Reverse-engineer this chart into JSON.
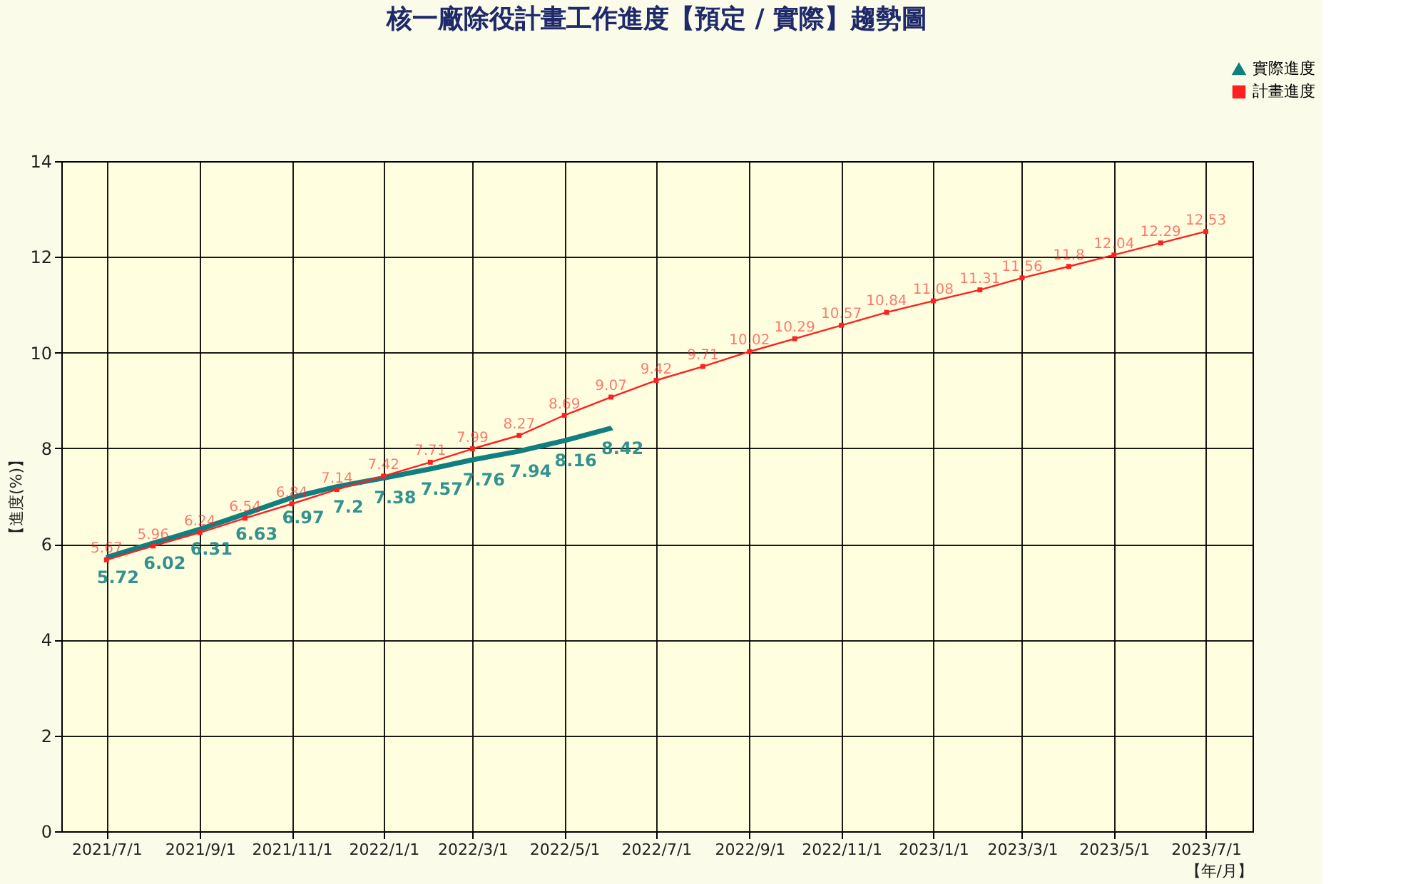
{
  "chart_data": {
    "type": "line",
    "title": "核一廠除役計畫工作進度【預定 / 實際】趨勢圖",
    "xlabel": "【年/月】",
    "ylabel": "【進度(%)】",
    "x": [
      "2021-07-01",
      "2021-08-01",
      "2021-09-01",
      "2021-10-01",
      "2021-11-01",
      "2021-12-01",
      "2022-01-01",
      "2022-02-01",
      "2022-03-01",
      "2022-04-01",
      "2022-05-01",
      "2022-06-01",
      "2022-07-01",
      "2022-08-01",
      "2022-09-01",
      "2022-10-01",
      "2022-11-01",
      "2022-12-01",
      "2023-01-01",
      "2023-02-01",
      "2023-03-01",
      "2023-04-01",
      "2023-05-01",
      "2023-06-01",
      "2023-07-01"
    ],
    "series": [
      {
        "name": "實際進度",
        "color": "#107f80",
        "marker": "triangle",
        "values": [
          5.72,
          6.02,
          6.31,
          6.63,
          6.97,
          7.2,
          7.38,
          7.57,
          7.76,
          7.94,
          8.16,
          8.42,
          null,
          null,
          null,
          null,
          null,
          null,
          null,
          null,
          null,
          null,
          null,
          null,
          null
        ]
      },
      {
        "name": "計畫進度",
        "color": "#ff2020",
        "marker": "square",
        "values": [
          5.67,
          5.96,
          6.24,
          6.54,
          6.84,
          7.14,
          7.42,
          7.71,
          7.99,
          8.27,
          8.69,
          9.07,
          9.42,
          9.71,
          10.02,
          10.29,
          10.57,
          10.84,
          11.08,
          11.31,
          11.56,
          11.8,
          12.04,
          12.29,
          12.53
        ]
      }
    ],
    "xlim": [
      "2021-06-01",
      "2023-08-01"
    ],
    "xticks": [
      {
        "value": "2021-07-01",
        "label": "2021/7/1"
      },
      {
        "value": "2021-09-01",
        "label": "2021/9/1"
      },
      {
        "value": "2021-11-01",
        "label": "2021/11/1"
      },
      {
        "value": "2022-01-01",
        "label": "2022/1/1"
      },
      {
        "value": "2022-03-01",
        "label": "2022/3/1"
      },
      {
        "value": "2022-05-01",
        "label": "2022/5/1"
      },
      {
        "value": "2022-07-01",
        "label": "2022/7/1"
      },
      {
        "value": "2022-09-01",
        "label": "2022/9/1"
      },
      {
        "value": "2022-11-01",
        "label": "2022/11/1"
      },
      {
        "value": "2023-01-01",
        "label": "2023/1/1"
      },
      {
        "value": "2023-03-01",
        "label": "2023/3/1"
      },
      {
        "value": "2023-05-01",
        "label": "2023/5/1"
      },
      {
        "value": "2023-07-01",
        "label": "2023/7/1"
      }
    ],
    "ylim": [
      0,
      14
    ],
    "yticks": [
      0,
      2,
      4,
      6,
      8,
      10,
      12,
      14
    ],
    "grid": true,
    "legend": "top right",
    "data_labels": true
  }
}
